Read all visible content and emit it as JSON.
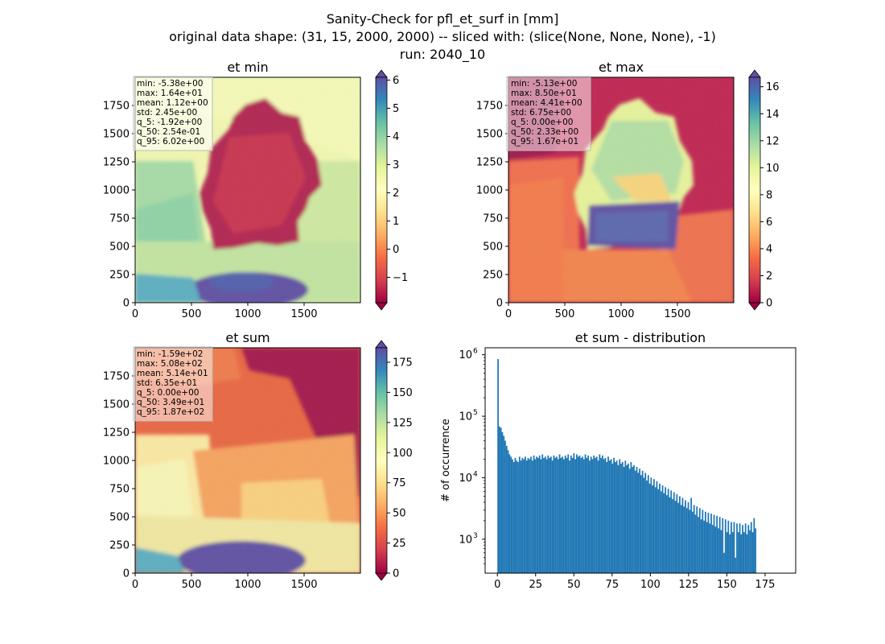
{
  "figure": {
    "suptitle_lines": [
      "Sanity-Check for pfl_et_surf in [mm]",
      "original data shape: (31, 15, 2000, 2000) -- sliced with: (slice(None, None, None), -1)",
      "run: 2040_10"
    ]
  },
  "colormap": {
    "name": "Spectral",
    "stops": [
      "#9e0142",
      "#d53e4f",
      "#f46d43",
      "#fdae61",
      "#fee08b",
      "#ffffbf",
      "#e6f598",
      "#abdda4",
      "#66c2a5",
      "#3288bd",
      "#5e4fa2"
    ]
  },
  "chart_data": [
    {
      "id": "et_min",
      "type": "heatmap",
      "title": "et min",
      "x_ticks": [
        0,
        500,
        1000,
        1500
      ],
      "y_ticks": [
        0,
        250,
        500,
        750,
        1000,
        1250,
        1500,
        1750
      ],
      "extent": [
        0,
        2000
      ],
      "colorbar": {
        "min": -1.9,
        "max": 6.1,
        "ticks": [
          -1,
          0,
          1,
          2,
          3,
          4,
          5,
          6
        ],
        "labels": [
          "−1",
          "0",
          "1",
          "2",
          "3",
          "4",
          "5",
          "6"
        ],
        "extend": "both"
      },
      "stats": [
        "min: -5.38e+00",
        "max: 1.64e+01",
        "mean: 1.12e+00",
        "std: 2.45e+00",
        "q_5: -1.92e+00",
        "q_50: 2.54e-01",
        "q_95: 6.02e+00"
      ],
      "stats_box_color": "#ffffff"
    },
    {
      "id": "et_max",
      "type": "heatmap",
      "title": "et max",
      "x_ticks": [
        0,
        500,
        1000,
        1500
      ],
      "y_ticks": [
        0,
        250,
        500,
        750,
        1000,
        1250,
        1500,
        1750
      ],
      "extent": [
        0,
        2000
      ],
      "colorbar": {
        "min": 0,
        "max": 16.7,
        "ticks": [
          0,
          2,
          4,
          6,
          8,
          10,
          12,
          14,
          16
        ],
        "labels": [
          "0",
          "2",
          "4",
          "6",
          "8",
          "10",
          "12",
          "14",
          "16"
        ],
        "extend": "both"
      },
      "stats": [
        "min: -5.13e+00",
        "max: 8.50e+01",
        "mean: 4.41e+00",
        "std: 6.75e+00",
        "q_5: 0.00e+00",
        "q_50: 2.33e+00",
        "q_95: 1.67e+01"
      ],
      "stats_box_color": "#ffffff"
    },
    {
      "id": "et_sum",
      "type": "heatmap",
      "title": "et sum",
      "x_ticks": [
        0,
        500,
        1000,
        1500
      ],
      "y_ticks": [
        0,
        250,
        500,
        750,
        1000,
        1250,
        1500,
        1750
      ],
      "extent": [
        0,
        2000
      ],
      "colorbar": {
        "min": 0,
        "max": 187,
        "ticks": [
          0,
          25,
          50,
          75,
          100,
          125,
          150,
          175
        ],
        "labels": [
          "0",
          "25",
          "50",
          "75",
          "100",
          "125",
          "150",
          "175"
        ],
        "extend": "both"
      },
      "stats": [
        "min: -1.59e+02",
        "max: 5.08e+02",
        "mean: 5.14e+01",
        "std: 6.35e+01",
        "q_5: 0.00e+00",
        "q_50: 3.49e+01",
        "q_95: 1.87e+02"
      ],
      "stats_box_color": "#ffffff"
    },
    {
      "id": "et_sum_distribution",
      "type": "bar",
      "title": "et sum - distribution",
      "ylabel": "# of occurrence",
      "yscale": "log",
      "xlim": [
        -8,
        195
      ],
      "ylim": [
        280,
        1300000
      ],
      "x_ticks": [
        0,
        25,
        50,
        75,
        100,
        125,
        150,
        175
      ],
      "y_ticks": [
        1000,
        10000,
        100000,
        1000000
      ],
      "y_tick_labels": [
        {
          "base": "10",
          "exp": "3"
        },
        {
          "base": "10",
          "exp": "4"
        },
        {
          "base": "10",
          "exp": "5"
        },
        {
          "base": "10",
          "exp": "6"
        }
      ],
      "bar_color": "#1f77b4",
      "bin_start": 0,
      "bin_width": 0.935,
      "values": [
        850000,
        68000,
        65000,
        55000,
        48000,
        40000,
        33000,
        28000,
        24000,
        22000,
        20000,
        18000,
        21000,
        19000,
        18000,
        22000,
        19000,
        21000,
        20000,
        22000,
        19000,
        21000,
        20000,
        22000,
        19000,
        23000,
        20000,
        22000,
        21000,
        23000,
        20000,
        24000,
        21000,
        22000,
        20000,
        23000,
        21000,
        22000,
        19000,
        23000,
        21000,
        22000,
        20000,
        24000,
        21000,
        22000,
        20000,
        23000,
        21000,
        24000,
        19000,
        23000,
        21000,
        25000,
        20000,
        24000,
        22000,
        23000,
        21000,
        22000,
        20000,
        24000,
        21000,
        23000,
        19000,
        22000,
        20000,
        23000,
        21000,
        22000,
        19000,
        24000,
        21000,
        23000,
        20000,
        21000,
        18000,
        22000,
        19000,
        20000,
        17000,
        21000,
        18000,
        19000,
        16000,
        20000,
        17000,
        18000,
        15000,
        19000,
        16000,
        17000,
        14000,
        18000,
        15000,
        16000,
        13000,
        15000,
        12000,
        14000,
        11000,
        13000,
        10000,
        12000,
        9000,
        11000,
        8000,
        10000,
        7500,
        9500,
        7000,
        8800,
        6500,
        8000,
        6000,
        7500,
        5600,
        7000,
        5200,
        6600,
        4800,
        6200,
        4500,
        5800,
        4200,
        5400,
        3900,
        5000,
        3600,
        4700,
        3400,
        4300,
        3200,
        4000,
        3000,
        4700,
        2800,
        3600,
        2500,
        3400,
        2300,
        3200,
        2100,
        3000,
        2000,
        2800,
        1900,
        2700,
        1800,
        2600,
        1700,
        2500,
        1600,
        2400,
        1500,
        2300,
        1400,
        2200,
        600,
        2100,
        1300,
        2000,
        1200,
        1900,
        1300,
        1900,
        500,
        1800,
        1300,
        1800,
        1200,
        1700,
        1300,
        1800,
        1200,
        1700,
        1400,
        1900,
        1300,
        2200,
        1500
      ]
    }
  ]
}
